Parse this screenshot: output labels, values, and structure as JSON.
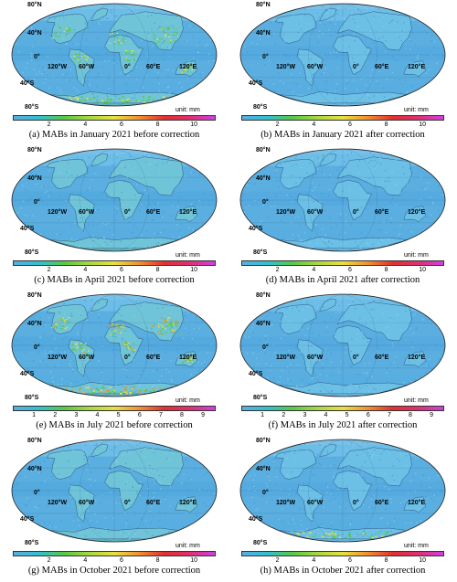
{
  "unit_label": "unit: mm",
  "lat_labels": [
    "80°N",
    "40°N",
    "0°",
    "40°S",
    "80°S"
  ],
  "lon_labels": [
    "120°W",
    "60°W",
    "0°",
    "60°E",
    "120°E"
  ],
  "colorbar_ticks_default": [
    "2",
    "4",
    "6",
    "8",
    "10"
  ],
  "colorbar_ticks_july": [
    "1",
    "2",
    "3",
    "4",
    "5",
    "6",
    "7",
    "8",
    "9"
  ],
  "colors": {
    "ocean_low": "#5aaee0",
    "land_low": "#6cc0e6",
    "green": "#58c848",
    "yellow": "#e8e040",
    "orange": "#f09030",
    "red": "#e03030",
    "purple": "#d040e0"
  },
  "panels": [
    {
      "caption": "(a) MABs in January 2021 before correction"
    },
    {
      "caption": "(b) MABs in January 2021 after correction"
    },
    {
      "caption": "(c) MABs in April 2021 before correction"
    },
    {
      "caption": "(d) MABs in April  2021 after correction"
    },
    {
      "caption": "(e) MABs in July 2021 before correction"
    },
    {
      "caption": "(f) MABs in July 2021 after correction"
    },
    {
      "caption": "(g) MABs in October 2021 before correction"
    },
    {
      "caption": "(h) MABs in October 2021 after correction"
    }
  ]
}
